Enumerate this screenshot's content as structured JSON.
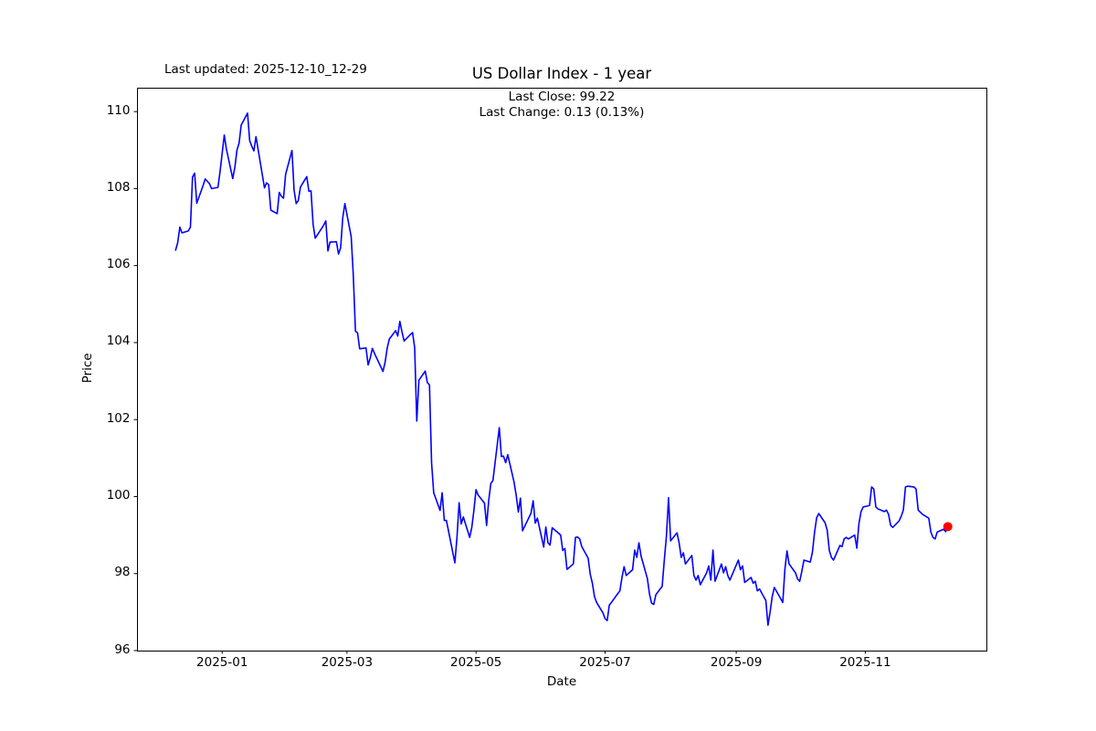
{
  "header": {
    "last_updated": "Last updated: 2025-12-10_12-29",
    "title": "US Dollar Index - 1 year",
    "subtitle_line1": "Last Close: 99.22",
    "subtitle_line2": "Last Change: 0.13 (0.13%)"
  },
  "chart_data": {
    "type": "line",
    "title": "US Dollar Index - 1 year",
    "xlabel": "Date",
    "ylabel": "Price",
    "legend": "none",
    "grid": false,
    "line_color": "#0000ff",
    "end_marker_color": "#ff0000",
    "frame_color": "#000000",
    "last_close": 99.22,
    "last_change": "0.13 (0.13%)",
    "x_start_date": "2024-12-10",
    "x_range_days": [
      -18.25,
      383.25
    ],
    "ylim": [
      96.0,
      110.62
    ],
    "y_ticks": [
      96,
      98,
      100,
      102,
      104,
      106,
      108,
      110
    ],
    "x_ticks": [
      {
        "label": "2025-01",
        "date": "2025-01-01"
      },
      {
        "label": "2025-03",
        "date": "2025-03-01"
      },
      {
        "label": "2025-05",
        "date": "2025-05-01"
      },
      {
        "label": "2025-07",
        "date": "2025-07-01"
      },
      {
        "label": "2025-09",
        "date": "2025-09-01"
      },
      {
        "label": "2025-11",
        "date": "2025-11-01"
      }
    ],
    "dates": [
      "2024-12-10",
      "2024-12-11",
      "2024-12-12",
      "2024-12-13",
      "2024-12-16",
      "2024-12-17",
      "2024-12-18",
      "2024-12-19",
      "2024-12-20",
      "2024-12-23",
      "2024-12-24",
      "2024-12-26",
      "2024-12-27",
      "2024-12-30",
      "2024-12-31",
      "2025-01-02",
      "2025-01-03",
      "2025-01-06",
      "2025-01-07",
      "2025-01-08",
      "2025-01-09",
      "2025-01-10",
      "2025-01-13",
      "2025-01-14",
      "2025-01-15",
      "2025-01-16",
      "2025-01-17",
      "2025-01-21",
      "2025-01-22",
      "2025-01-23",
      "2025-01-24",
      "2025-01-27",
      "2025-01-28",
      "2025-01-29",
      "2025-01-30",
      "2025-01-31",
      "2025-02-03",
      "2025-02-04",
      "2025-02-05",
      "2025-02-06",
      "2025-02-07",
      "2025-02-10",
      "2025-02-11",
      "2025-02-12",
      "2025-02-13",
      "2025-02-14",
      "2025-02-18",
      "2025-02-19",
      "2025-02-20",
      "2025-02-21",
      "2025-02-24",
      "2025-02-25",
      "2025-02-26",
      "2025-02-27",
      "2025-02-28",
      "2025-03-03",
      "2025-03-04",
      "2025-03-05",
      "2025-03-06",
      "2025-03-07",
      "2025-03-10",
      "2025-03-11",
      "2025-03-12",
      "2025-03-13",
      "2025-03-14",
      "2025-03-17",
      "2025-03-18",
      "2025-03-19",
      "2025-03-20",
      "2025-03-21",
      "2025-03-24",
      "2025-03-25",
      "2025-03-26",
      "2025-03-27",
      "2025-03-28",
      "2025-03-31",
      "2025-04-01",
      "2025-04-02",
      "2025-04-03",
      "2025-04-04",
      "2025-04-07",
      "2025-04-08",
      "2025-04-09",
      "2025-04-10",
      "2025-04-11",
      "2025-04-14",
      "2025-04-15",
      "2025-04-16",
      "2025-04-17",
      "2025-04-21",
      "2025-04-22",
      "2025-04-23",
      "2025-04-24",
      "2025-04-25",
      "2025-04-28",
      "2025-04-29",
      "2025-04-30",
      "2025-05-01",
      "2025-05-02",
      "2025-05-05",
      "2025-05-06",
      "2025-05-07",
      "2025-05-08",
      "2025-05-09",
      "2025-05-12",
      "2025-05-13",
      "2025-05-14",
      "2025-05-15",
      "2025-05-16",
      "2025-05-19",
      "2025-05-20",
      "2025-05-21",
      "2025-05-22",
      "2025-05-23",
      "2025-05-27",
      "2025-05-28",
      "2025-05-29",
      "2025-05-30",
      "2025-06-02",
      "2025-06-03",
      "2025-06-04",
      "2025-06-05",
      "2025-06-06",
      "2025-06-09",
      "2025-06-10",
      "2025-06-11",
      "2025-06-12",
      "2025-06-13",
      "2025-06-16",
      "2025-06-17",
      "2025-06-18",
      "2025-06-19",
      "2025-06-20",
      "2025-06-23",
      "2025-06-24",
      "2025-06-25",
      "2025-06-26",
      "2025-06-27",
      "2025-06-30",
      "2025-07-01",
      "2025-07-02",
      "2025-07-03",
      "2025-07-04",
      "2025-07-07",
      "2025-07-08",
      "2025-07-09",
      "2025-07-10",
      "2025-07-11",
      "2025-07-14",
      "2025-07-15",
      "2025-07-16",
      "2025-07-17",
      "2025-07-18",
      "2025-07-21",
      "2025-07-22",
      "2025-07-23",
      "2025-07-24",
      "2025-07-25",
      "2025-07-28",
      "2025-07-29",
      "2025-07-30",
      "2025-07-31",
      "2025-08-01",
      "2025-08-04",
      "2025-08-05",
      "2025-08-06",
      "2025-08-07",
      "2025-08-08",
      "2025-08-11",
      "2025-08-12",
      "2025-08-13",
      "2025-08-14",
      "2025-08-15",
      "2025-08-18",
      "2025-08-19",
      "2025-08-20",
      "2025-08-21",
      "2025-08-22",
      "2025-08-25",
      "2025-08-26",
      "2025-08-27",
      "2025-08-28",
      "2025-08-29",
      "2025-09-02",
      "2025-09-03",
      "2025-09-04",
      "2025-09-05",
      "2025-09-08",
      "2025-09-09",
      "2025-09-10",
      "2025-09-11",
      "2025-09-12",
      "2025-09-15",
      "2025-09-16",
      "2025-09-17",
      "2025-09-18",
      "2025-09-19",
      "2025-09-22",
      "2025-09-23",
      "2025-09-24",
      "2025-09-25",
      "2025-09-26",
      "2025-09-29",
      "2025-09-30",
      "2025-10-01",
      "2025-10-02",
      "2025-10-03",
      "2025-10-06",
      "2025-10-07",
      "2025-10-08",
      "2025-10-09",
      "2025-10-10",
      "2025-10-13",
      "2025-10-14",
      "2025-10-15",
      "2025-10-16",
      "2025-10-17",
      "2025-10-20",
      "2025-10-21",
      "2025-10-22",
      "2025-10-23",
      "2025-10-24",
      "2025-10-27",
      "2025-10-28",
      "2025-10-29",
      "2025-10-30",
      "2025-10-31",
      "2025-11-03",
      "2025-11-04",
      "2025-11-05",
      "2025-11-06",
      "2025-11-07",
      "2025-11-10",
      "2025-11-11",
      "2025-11-12",
      "2025-11-13",
      "2025-11-14",
      "2025-11-17",
      "2025-11-18",
      "2025-11-19",
      "2025-11-20",
      "2025-11-21",
      "2025-11-24",
      "2025-11-25",
      "2025-11-26",
      "2025-11-28",
      "2025-12-01",
      "2025-12-02",
      "2025-12-03",
      "2025-12-04",
      "2025-12-05",
      "2025-12-08",
      "2025-12-09",
      "2025-12-10"
    ],
    "values": [
      106.4,
      106.6,
      107.0,
      106.85,
      106.9,
      107.0,
      108.3,
      108.4,
      107.62,
      108.08,
      108.25,
      108.13,
      108.0,
      108.03,
      108.44,
      109.39,
      109.03,
      108.26,
      108.55,
      109.0,
      109.18,
      109.65,
      109.96,
      109.25,
      109.1,
      108.98,
      109.35,
      108.02,
      108.15,
      108.1,
      107.44,
      107.35,
      107.9,
      107.8,
      107.75,
      108.37,
      108.99,
      107.96,
      107.61,
      107.69,
      108.04,
      108.31,
      107.93,
      107.94,
      107.07,
      106.71,
      107.05,
      107.16,
      106.38,
      106.61,
      106.62,
      106.3,
      106.46,
      107.24,
      107.61,
      106.75,
      105.74,
      104.3,
      104.25,
      103.84,
      103.86,
      103.42,
      103.6,
      103.85,
      103.72,
      103.37,
      103.25,
      103.48,
      103.85,
      104.09,
      104.31,
      104.17,
      104.55,
      104.28,
      104.04,
      104.21,
      104.26,
      103.87,
      101.96,
      103.02,
      103.26,
      102.96,
      102.9,
      100.87,
      100.1,
      99.64,
      100.1,
      99.38,
      99.38,
      98.28,
      98.94,
      99.84,
      99.29,
      99.47,
      98.94,
      99.2,
      99.64,
      100.18,
      100.04,
      99.83,
      99.25,
      99.9,
      100.34,
      100.42,
      101.79,
      101.04,
      101.05,
      100.88,
      101.09,
      100.37,
      100.03,
      99.6,
      99.96,
      99.11,
      99.57,
      99.89,
      99.31,
      99.44,
      98.69,
      99.21,
      98.8,
      98.74,
      99.19,
      99.05,
      99.0,
      98.6,
      98.65,
      98.11,
      98.25,
      98.94,
      98.95,
      98.9,
      98.7,
      98.4,
      97.98,
      97.75,
      97.4,
      97.25,
      96.98,
      96.83,
      96.78,
      97.18,
      97.25,
      97.48,
      97.55,
      97.9,
      98.18,
      97.95,
      98.1,
      98.61,
      98.42,
      98.8,
      98.46,
      97.87,
      97.47,
      97.23,
      97.2,
      97.45,
      97.67,
      98.35,
      98.97,
      99.97,
      98.85,
      99.06,
      98.8,
      98.42,
      98.54,
      98.25,
      98.47,
      97.95,
      97.83,
      97.95,
      97.71,
      98.02,
      98.2,
      97.83,
      98.61,
      97.8,
      98.25,
      98.02,
      98.18,
      97.95,
      97.83,
      98.35,
      98.1,
      98.2,
      97.77,
      97.9,
      97.75,
      97.8,
      97.55,
      97.6,
      97.3,
      96.66,
      97.0,
      97.4,
      97.64,
      97.35,
      97.25,
      98.11,
      98.59,
      98.25,
      98.02,
      97.86,
      97.8,
      98.06,
      98.35,
      98.3,
      98.55,
      99.06,
      99.45,
      99.56,
      99.32,
      99.13,
      98.6,
      98.42,
      98.35,
      98.73,
      98.7,
      98.9,
      98.94,
      98.9,
      99.0,
      98.66,
      99.3,
      99.61,
      99.73,
      99.77,
      100.25,
      100.2,
      99.73,
      99.68,
      99.61,
      99.65,
      99.54,
      99.25,
      99.2,
      99.37,
      99.49,
      99.65,
      100.25,
      100.27,
      100.25,
      100.2,
      99.65,
      99.54,
      99.44,
      99.08,
      98.94,
      98.9,
      99.08,
      99.15,
      99.09,
      99.22
    ]
  }
}
